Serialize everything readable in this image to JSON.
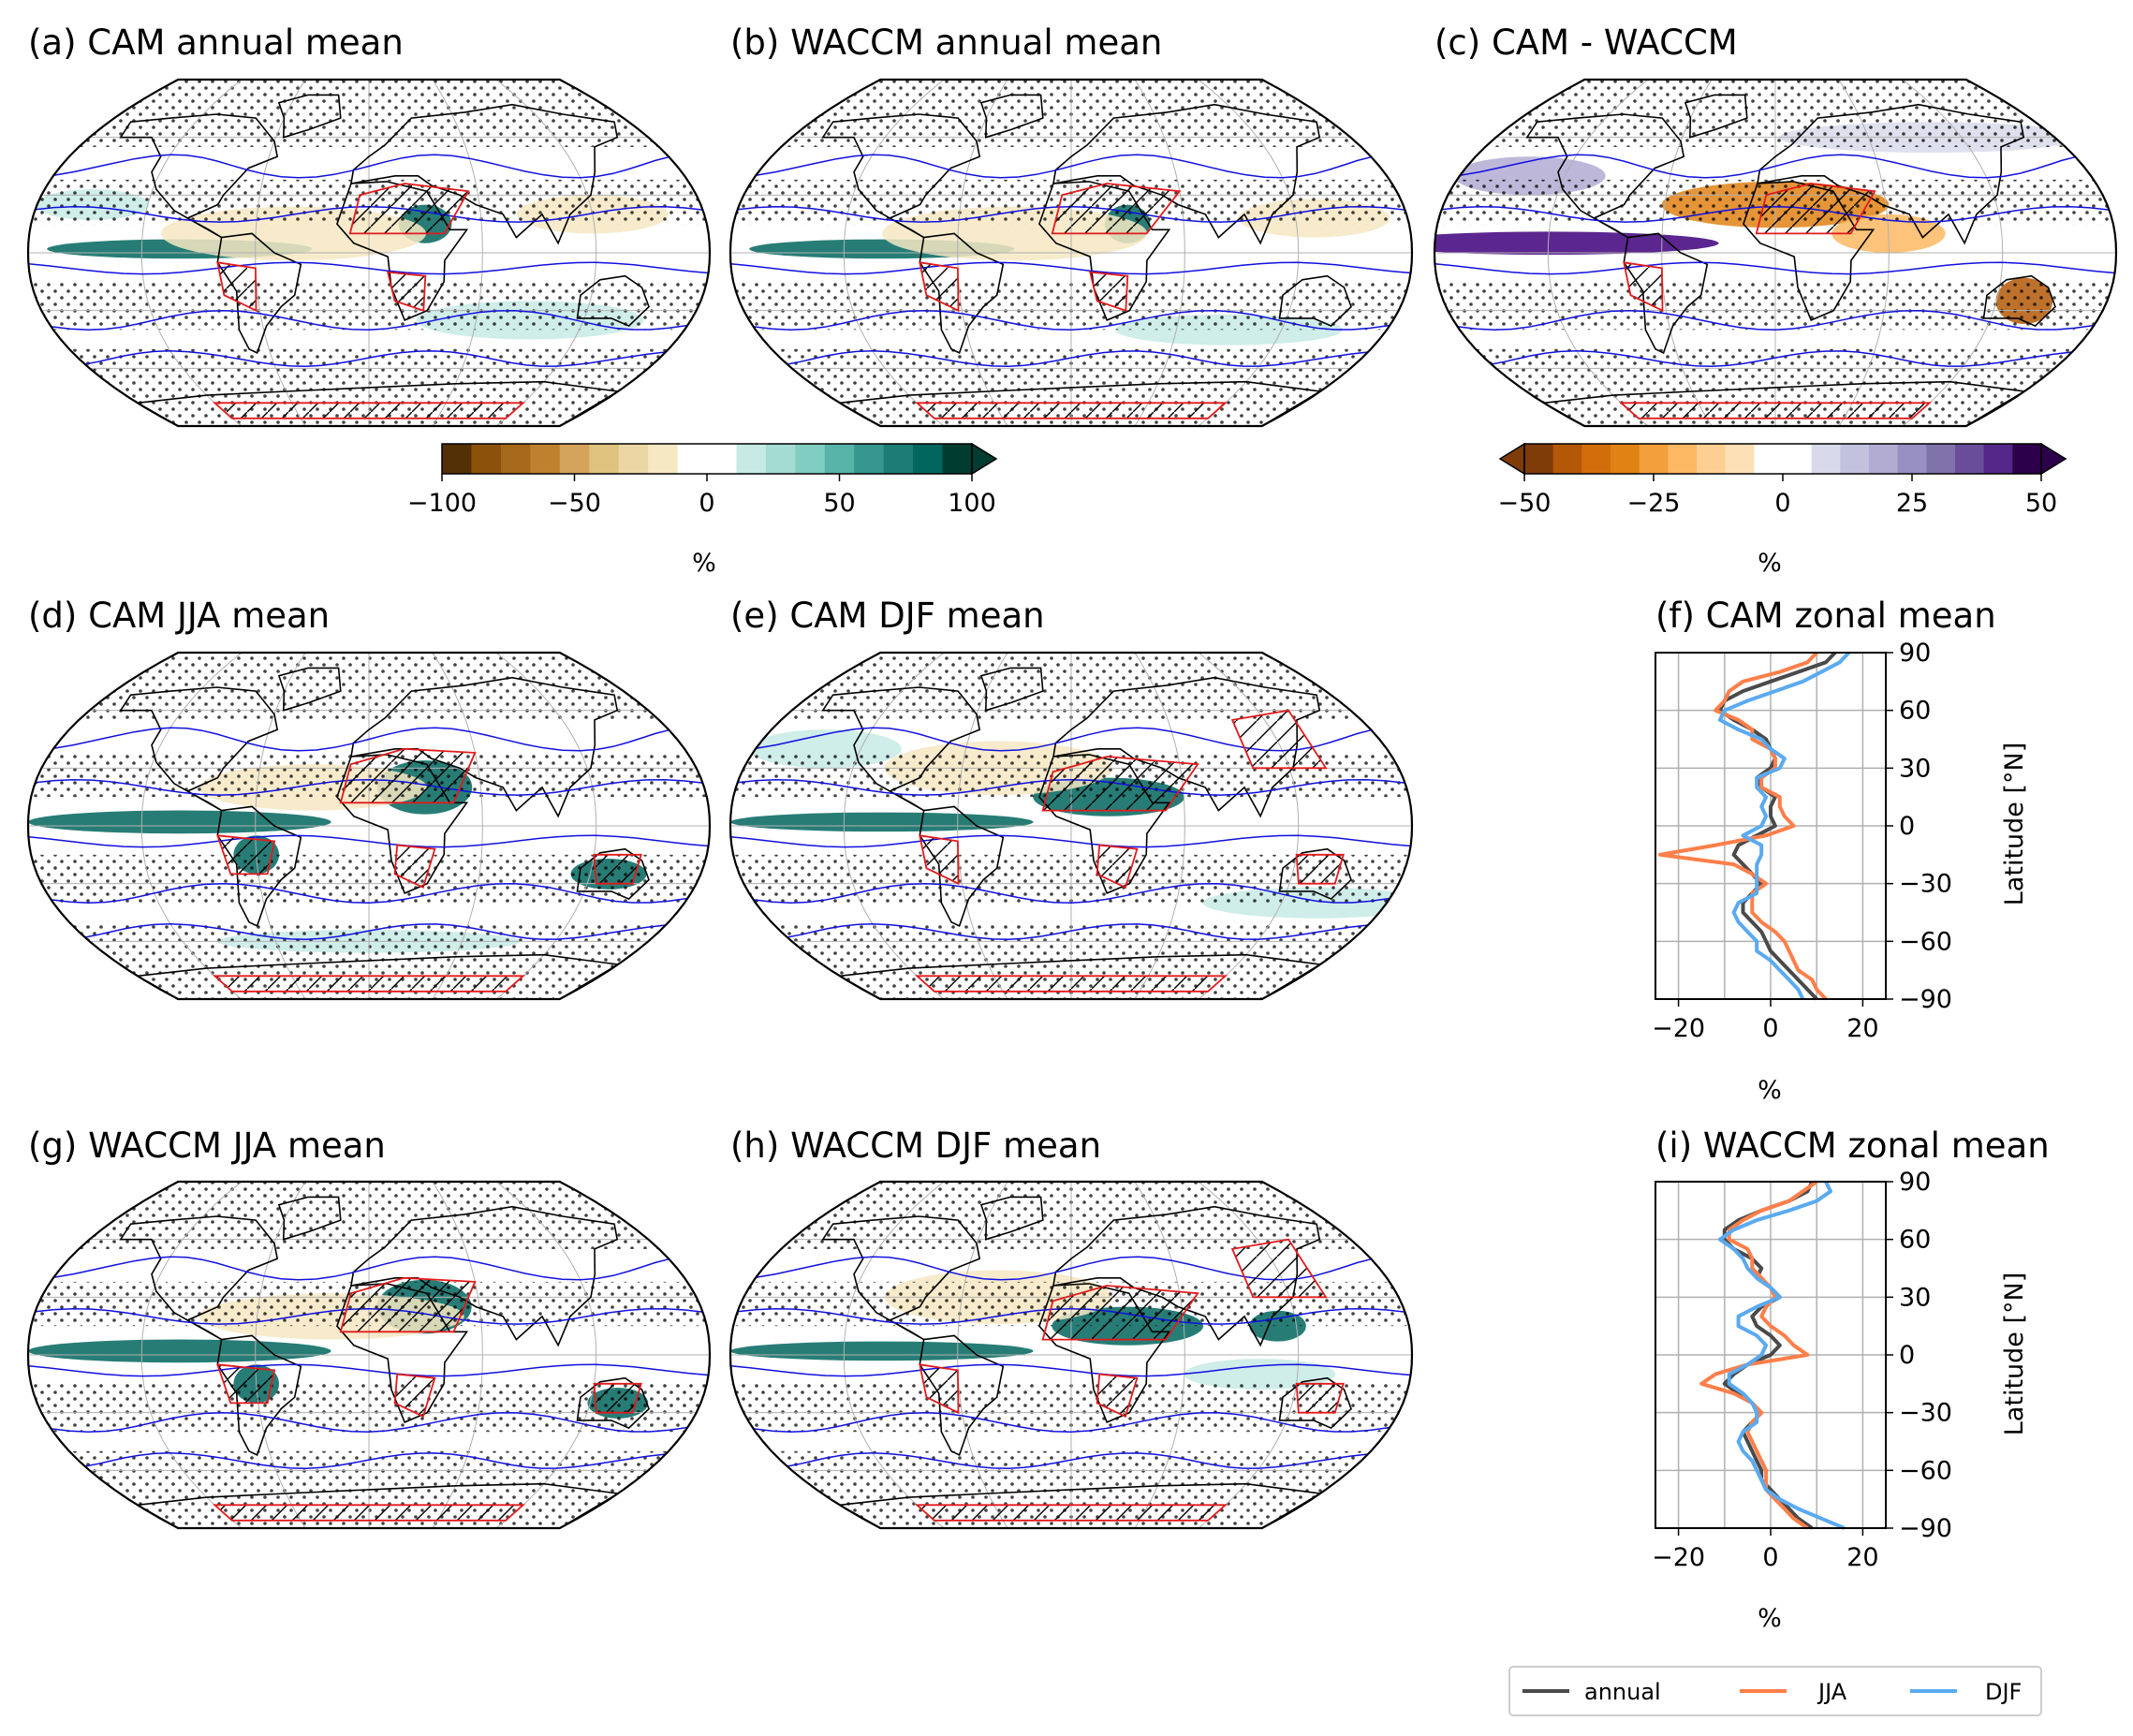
{
  "panels": {
    "a": {
      "title": "(a) CAM annual mean",
      "variant": 0
    },
    "b": {
      "title": "(b) WACCM annual mean",
      "variant": 1
    },
    "c": {
      "title": "(c) CAM - WACCM",
      "variant": 2
    },
    "d": {
      "title": "(d) CAM JJA mean",
      "variant": 3
    },
    "e": {
      "title": "(e) CAM DJF mean",
      "variant": 4
    },
    "g": {
      "title": "(g) WACCM JJA mean",
      "variant": 5
    },
    "h": {
      "title": "(h) WACCM DJF mean",
      "variant": 6
    }
  },
  "colorbars": {
    "main": {
      "ticks": [
        -100,
        -50,
        0,
        50,
        100
      ],
      "range": [
        -100,
        100
      ],
      "label": "%",
      "extend": "max",
      "palette": "BrBG"
    },
    "diff": {
      "ticks": [
        -50,
        -25,
        0,
        25,
        50
      ],
      "range": [
        -50,
        50
      ],
      "label": "%",
      "extend": "both",
      "palette": "PuOr"
    }
  },
  "colors": {
    "annual": "#4a4a4a",
    "JJA": "#ff7f4a",
    "DJF": "#5aaaf0",
    "contour_red": "#e31a1c",
    "contour_blue": "#1010e0",
    "coast": "#000000"
  },
  "chart_data": [
    {
      "type": "line",
      "title": "(f) CAM zonal mean",
      "xlabel": "%",
      "ylabel": "Latitude [°N]",
      "xlim": [
        -25,
        25
      ],
      "ylim": [
        -90,
        90
      ],
      "xticks": [
        -20,
        0,
        20
      ],
      "yticks": [
        90,
        60,
        30,
        0,
        -30,
        -60,
        -90
      ],
      "grid": true,
      "y": [
        90,
        85,
        80,
        75,
        70,
        65,
        60,
        55,
        50,
        45,
        40,
        35,
        30,
        25,
        20,
        15,
        10,
        5,
        0,
        -5,
        -10,
        -15,
        -20,
        -25,
        -30,
        -35,
        -40,
        -45,
        -50,
        -55,
        -60,
        -65,
        -70,
        -75,
        -80,
        -85,
        -90
      ],
      "series": [
        {
          "name": "annual",
          "x": [
            14,
            12,
            6,
            0,
            -6,
            -10,
            -11,
            -8,
            -4,
            -1,
            0,
            1,
            0,
            -3,
            -2,
            1,
            0,
            0,
            1,
            -3,
            -7,
            -8,
            -6,
            -4,
            -2,
            -4,
            -6,
            -6,
            -4,
            -2,
            -1,
            0,
            2,
            4,
            6,
            8,
            10
          ]
        },
        {
          "name": "JJA",
          "x": [
            10,
            8,
            2,
            -6,
            -9,
            -10,
            -12,
            -7,
            -4,
            -4,
            0,
            1,
            1,
            -2,
            -2,
            2,
            2,
            3,
            5,
            -1,
            -12,
            -24,
            -8,
            -4,
            -1,
            -4,
            -4,
            -4,
            -2,
            1,
            3,
            4,
            5,
            6,
            9,
            10,
            12
          ]
        },
        {
          "name": "DJF",
          "x": [
            17,
            15,
            11,
            7,
            1,
            -5,
            -10,
            -11,
            -7,
            -2,
            0,
            3,
            2,
            -3,
            -3,
            -1,
            -2,
            -1,
            -2,
            -6,
            -2,
            -2,
            -3,
            -3,
            -3,
            -3,
            -7,
            -8,
            -7,
            -5,
            -3,
            -3,
            0,
            2,
            4,
            6,
            7
          ]
        }
      ]
    },
    {
      "type": "line",
      "title": "(i) WACCM zonal mean",
      "xlabel": "%",
      "ylabel": "Latitude [°N]",
      "xlim": [
        -25,
        25
      ],
      "ylim": [
        -90,
        90
      ],
      "xticks": [
        -20,
        0,
        20
      ],
      "yticks": [
        90,
        60,
        30,
        0,
        -30,
        -60,
        -90
      ],
      "grid": true,
      "y": [
        90,
        85,
        80,
        75,
        70,
        65,
        60,
        55,
        50,
        45,
        40,
        35,
        30,
        25,
        20,
        15,
        10,
        5,
        0,
        -5,
        -10,
        -15,
        -20,
        -25,
        -30,
        -35,
        -40,
        -45,
        -50,
        -55,
        -60,
        -65,
        -70,
        -75,
        -80,
        -85,
        -90
      ],
      "series": [
        {
          "name": "annual",
          "x": [
            9,
            8,
            4,
            -2,
            -7,
            -10,
            -10,
            -8,
            -4,
            -2,
            -3,
            0,
            2,
            -2,
            -4,
            -3,
            0,
            2,
            0,
            -5,
            -8,
            -10,
            -7,
            -4,
            -2,
            -4,
            -6,
            -5,
            -4,
            -3,
            -2,
            -2,
            0,
            2,
            4,
            6,
            9
          ]
        },
        {
          "name": "JJA",
          "x": [
            10,
            7,
            4,
            -2,
            -6,
            -9,
            -9,
            -5,
            -4,
            -4,
            -2,
            0,
            1,
            -1,
            -2,
            0,
            3,
            5,
            8,
            -5,
            -12,
            -15,
            -8,
            -4,
            -2,
            -4,
            -5,
            -4,
            -3,
            -2,
            -1,
            -1,
            -1,
            1,
            3,
            5,
            8
          ]
        },
        {
          "name": "DJF",
          "x": [
            12,
            13,
            10,
            4,
            -3,
            -8,
            -11,
            -8,
            -6,
            -5,
            -3,
            0,
            2,
            -3,
            -7,
            -7,
            -3,
            -1,
            -2,
            -5,
            -9,
            -9,
            -6,
            -4,
            -3,
            -3,
            -6,
            -7,
            -6,
            -4,
            -3,
            -2,
            -1,
            2,
            6,
            11,
            16
          ]
        }
      ]
    }
  ],
  "legend": {
    "entries": [
      "annual",
      "JJA",
      "DJF"
    ]
  }
}
